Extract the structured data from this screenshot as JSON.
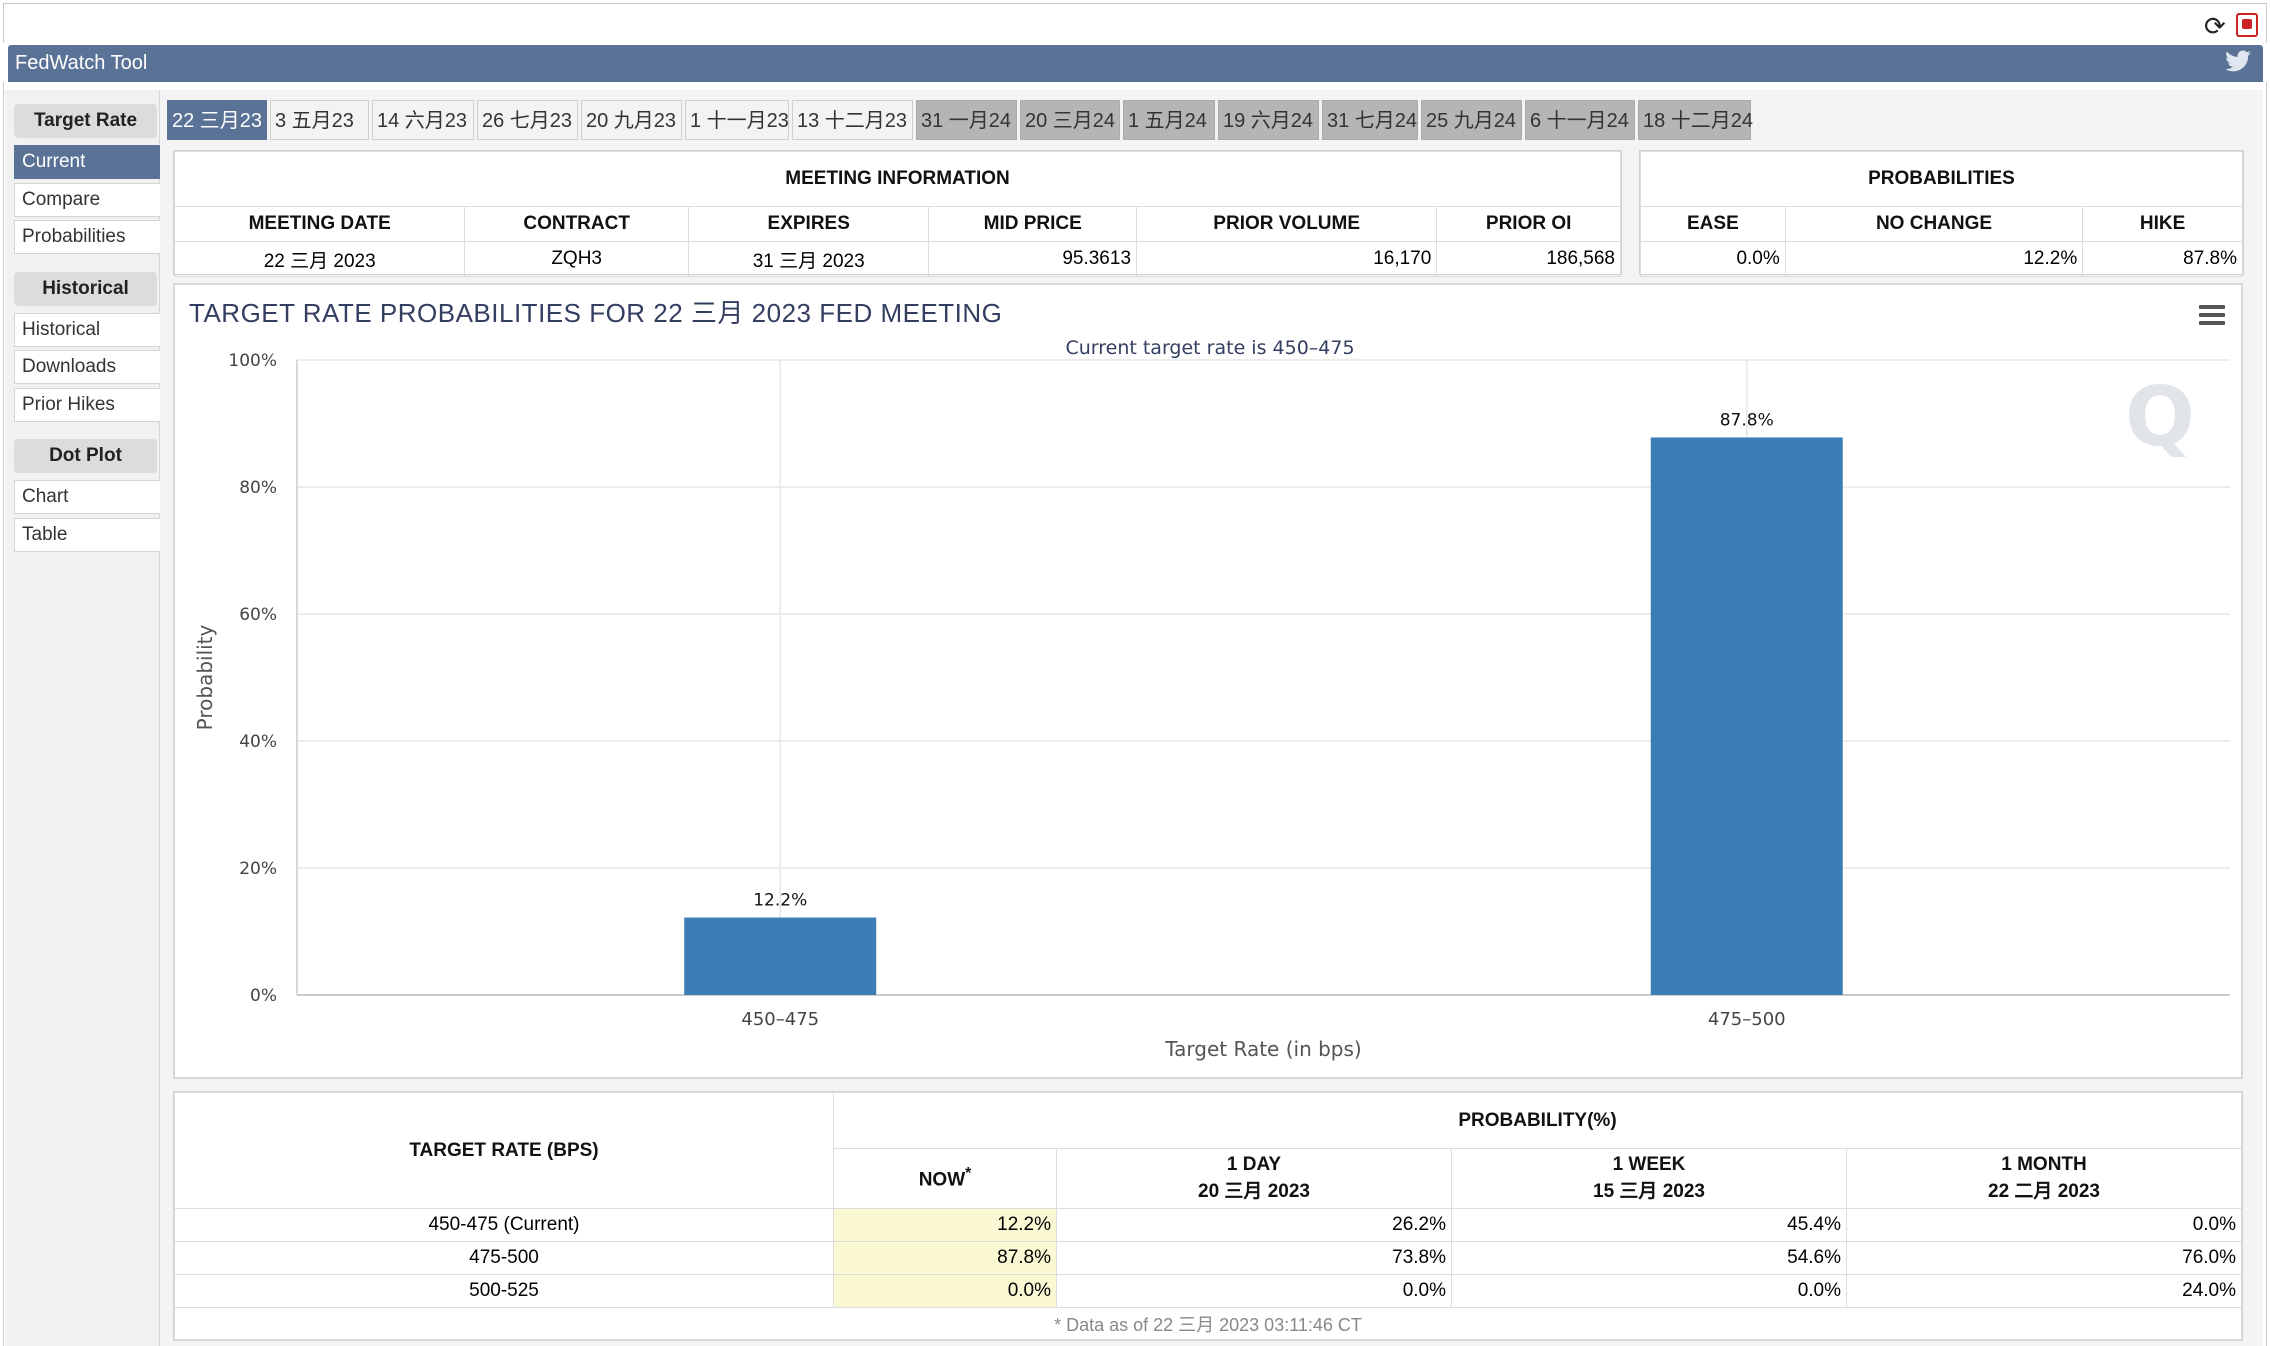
{
  "app": {
    "title": "FedWatch Tool"
  },
  "icons": {
    "refresh": "refresh-icon",
    "pdf": "pdf-icon",
    "twitter": "twitter-icon",
    "menu": "hamburger-menu-icon",
    "watermark": "q-logo-watermark"
  },
  "colors": {
    "accent": "#5a7296",
    "bar": "#3d7db5",
    "highlight": "#fbf9d4"
  },
  "sidebar": {
    "groups": [
      {
        "label": "Target Rate",
        "items": [
          "Current",
          "Compare",
          "Probabilities"
        ]
      },
      {
        "label": "Historical",
        "items": [
          "Historical",
          "Downloads",
          "Prior Hikes"
        ]
      },
      {
        "label": "Dot Plot",
        "items": [
          "Chart",
          "Table"
        ]
      }
    ],
    "active": "Current"
  },
  "tabs": [
    {
      "label": "22 三月23",
      "state": "active"
    },
    {
      "label": "3 五月23",
      "state": "normal"
    },
    {
      "label": "14 六月23",
      "state": "normal"
    },
    {
      "label": "26 七月23",
      "state": "normal"
    },
    {
      "label": "20 九月23",
      "state": "normal"
    },
    {
      "label": "1 十一月23",
      "state": "normal"
    },
    {
      "label": "13 十二月23",
      "state": "normal"
    },
    {
      "label": "31 一月24",
      "state": "gray"
    },
    {
      "label": "20 三月24",
      "state": "gray"
    },
    {
      "label": "1 五月24",
      "state": "gray"
    },
    {
      "label": "19 六月24",
      "state": "gray"
    },
    {
      "label": "31 七月24",
      "state": "gray"
    },
    {
      "label": "25 九月24",
      "state": "gray"
    },
    {
      "label": "6 十一月24",
      "state": "gray"
    },
    {
      "label": "18 十二月24",
      "state": "gray"
    }
  ],
  "meeting_info": {
    "title": "MEETING INFORMATION",
    "headers": [
      "MEETING DATE",
      "CONTRACT",
      "EXPIRES",
      "MID PRICE",
      "PRIOR VOLUME",
      "PRIOR OI"
    ],
    "row": [
      "22 三月 2023",
      "ZQH3",
      "31 三月 2023",
      "95.3613",
      "16,170",
      "186,568"
    ]
  },
  "probabilities": {
    "title": "PROBABILITIES",
    "headers": [
      "EASE",
      "NO CHANGE",
      "HIKE"
    ],
    "row": [
      "0.0%",
      "12.2%",
      "87.8%"
    ]
  },
  "chart_data": {
    "type": "bar",
    "title": "TARGET RATE PROBABILITIES FOR 22 三月 2023 FED MEETING",
    "subtitle": "Current target rate is 450–475",
    "categories": [
      "450–475",
      "475–500"
    ],
    "values": [
      12.2,
      87.8
    ],
    "data_labels": [
      "12.2%",
      "87.8%"
    ],
    "xlabel": "Target Rate (in bps)",
    "ylabel": "Probability",
    "ylim": [
      0,
      100
    ],
    "yticks": [
      "0%",
      "20%",
      "40%",
      "60%",
      "80%",
      "100%"
    ],
    "grid": true,
    "color": "#3d7db5"
  },
  "prob_table": {
    "target_header": "TARGET RATE (BPS)",
    "prob_header": "PROBABILITY(%)",
    "columns": [
      {
        "line1": "NOW",
        "line2": ""
      },
      {
        "line1": "1 DAY",
        "line2": "20 三月 2023"
      },
      {
        "line1": "1 WEEK",
        "line2": "15 三月 2023"
      },
      {
        "line1": "1 MONTH",
        "line2": "22 二月 2023"
      }
    ],
    "now_marker": "*",
    "rows": [
      {
        "rate": "450-475 (Current)",
        "values": [
          "12.2%",
          "26.2%",
          "45.4%",
          "0.0%"
        ]
      },
      {
        "rate": "475-500",
        "values": [
          "87.8%",
          "73.8%",
          "54.6%",
          "76.0%"
        ]
      },
      {
        "rate": "500-525",
        "values": [
          "0.0%",
          "0.0%",
          "0.0%",
          "24.0%"
        ]
      }
    ],
    "footnote": "* Data as of 22 三月 2023 03:11:46 CT"
  }
}
